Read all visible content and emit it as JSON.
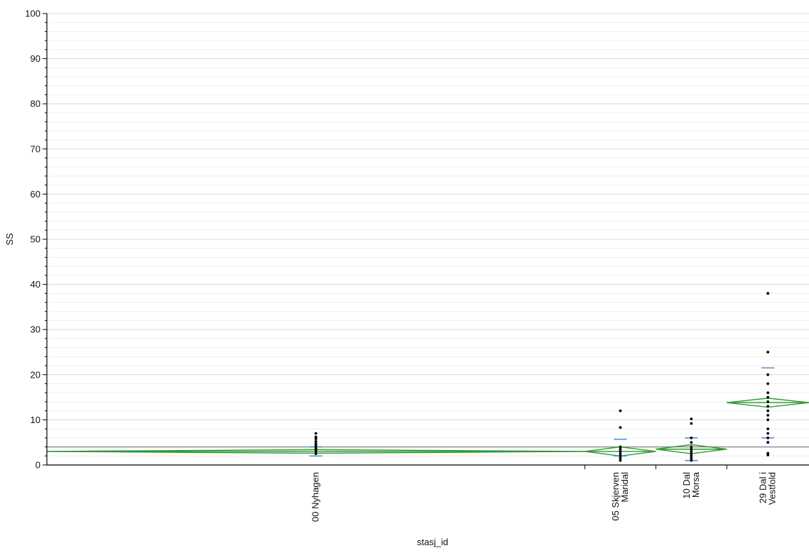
{
  "chart_data": {
    "type": "scatter",
    "subtype": "oneway-means-diamonds",
    "title": "",
    "xlabel": "stasj_id",
    "ylabel": "SS",
    "ylim": [
      0,
      100
    ],
    "yticks": [
      0,
      10,
      20,
      30,
      40,
      50,
      60,
      70,
      80,
      90,
      100
    ],
    "grid": true,
    "grand_mean": 4.0,
    "colors": {
      "points": "#000000",
      "diamond": "#2f9a2f",
      "quantile": "#4a90d9",
      "grand_mean_line": "#888888",
      "gridline": "#d8d8d8"
    },
    "groups": [
      {
        "label_lines": [
          "00 Nyhagen"
        ],
        "weight": 0.72,
        "mean": 3.0,
        "ci": [
          2.6,
          3.4
        ],
        "quantile_marks": [
          2.0,
          4.0
        ],
        "points": [
          2.5,
          3.0,
          3.3,
          3.6,
          4.0,
          4.3,
          4.7,
          5.2,
          5.8,
          6.2,
          7.0
        ]
      },
      {
        "label_lines": [
          "05 Skjerven",
          "Maridal"
        ],
        "weight": 0.095,
        "mean": 3.0,
        "ci": [
          2.0,
          4.0
        ],
        "quantile_marks": [
          5.7,
          2.0
        ],
        "points": [
          1.0,
          1.5,
          2.0,
          2.5,
          3.0,
          3.5,
          4.0,
          8.3,
          12.0
        ]
      },
      {
        "label_lines": [
          "10 Dal",
          "Morsa"
        ],
        "weight": 0.095,
        "mean": 3.5,
        "ci": [
          2.5,
          4.5
        ],
        "quantile_marks": [
          6.0,
          1.0
        ],
        "points": [
          1.0,
          1.5,
          2.0,
          2.5,
          3.0,
          3.5,
          4.0,
          5.0,
          6.0,
          9.2,
          10.2
        ]
      },
      {
        "label_lines": [
          "29 Dal i",
          "Vestfold"
        ],
        "weight": 0.11,
        "mean": 13.8,
        "ci": [
          12.8,
          14.8
        ],
        "quantile_marks": [
          21.5,
          6.0
        ],
        "points": [
          2.2,
          2.6,
          5.0,
          6.0,
          7.0,
          8.0,
          10.0,
          11.0,
          12.0,
          13.0,
          14.0,
          15.0,
          16.0,
          18.0,
          20.0,
          25.0,
          38.0
        ]
      }
    ]
  }
}
